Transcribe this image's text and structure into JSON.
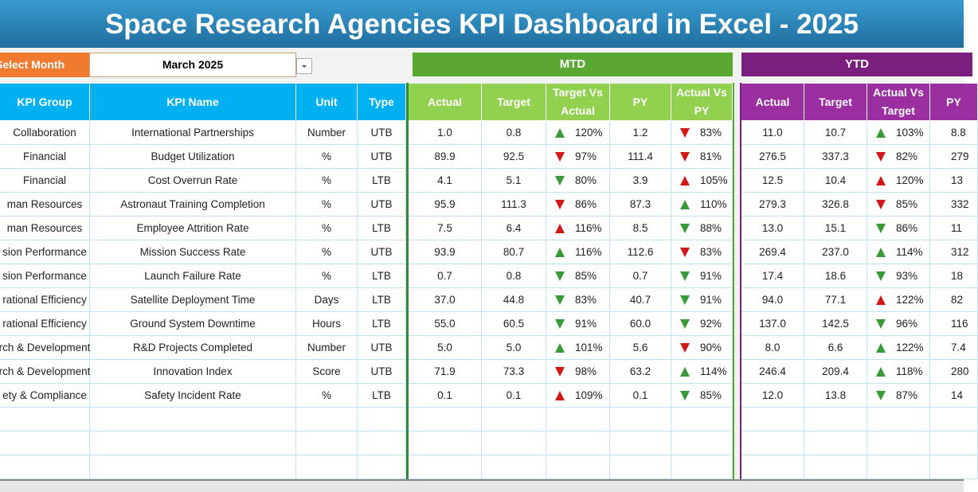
{
  "header": {
    "title": "Space Research Agencies KPI Dashboard in Excel - 2025",
    "select_label": "Select Month",
    "month": "March 2025",
    "mtd": "MTD",
    "ytd": "YTD"
  },
  "table": {
    "columns": [
      "KPI Group",
      "KPI Name",
      "Unit",
      "Type",
      "Actual",
      "Target",
      "Target Vs Actual",
      "PY",
      "Actual Vs PY",
      "Actual",
      "Target",
      "Actual Vs Target",
      "PY"
    ],
    "rows": [
      [
        "Collaboration",
        "International Partnerships",
        "Number",
        "UTB",
        "1.0",
        "0.8",
        "120%",
        "1.2",
        "83%",
        "11.0",
        "10.7",
        "103%",
        "8.8"
      ],
      [
        "Financial",
        "Budget Utilization",
        "%",
        "UTB",
        "89.9",
        "92.5",
        "97%",
        "111.4",
        "81%",
        "276.5",
        "337.3",
        "82%",
        "279"
      ],
      [
        "Financial",
        "Cost Overrun Rate",
        "%",
        "LTB",
        "4.1",
        "5.1",
        "80%",
        "3.9",
        "105%",
        "12.5",
        "10.4",
        "120%",
        "13"
      ],
      [
        "man Resources",
        "Astronaut Training Completion",
        "%",
        "UTB",
        "95.9",
        "111.3",
        "86%",
        "87.3",
        "110%",
        "279.3",
        "326.8",
        "85%",
        "332"
      ],
      [
        "man Resources",
        "Employee Attrition Rate",
        "%",
        "LTB",
        "7.5",
        "6.4",
        "116%",
        "8.5",
        "88%",
        "13.0",
        "15.1",
        "86%",
        "11"
      ],
      [
        "sion Performance",
        "Mission Success Rate",
        "%",
        "UTB",
        "93.9",
        "80.7",
        "116%",
        "112.6",
        "83%",
        "269.4",
        "237.0",
        "114%",
        "312"
      ],
      [
        "sion Performance",
        "Launch Failure Rate",
        "%",
        "LTB",
        "0.7",
        "0.8",
        "85%",
        "0.7",
        "91%",
        "17.4",
        "18.6",
        "93%",
        "18"
      ],
      [
        "rational Efficiency",
        "Satellite Deployment Time",
        "Days",
        "LTB",
        "37.0",
        "44.8",
        "83%",
        "40.7",
        "91%",
        "94.0",
        "77.1",
        "122%",
        "82"
      ],
      [
        "rational Efficiency",
        "Ground System Downtime",
        "Hours",
        "LTB",
        "55.0",
        "60.5",
        "91%",
        "60.0",
        "92%",
        "137.0",
        "142.5",
        "96%",
        "116"
      ],
      [
        "rch & Development",
        "R&D Projects Completed",
        "Number",
        "UTB",
        "5.0",
        "5.0",
        "101%",
        "5.6",
        "90%",
        "8.0",
        "6.6",
        "122%",
        "7.4"
      ],
      [
        "rch & Development",
        "Innovation Index",
        "Score",
        "UTB",
        "71.9",
        "73.3",
        "98%",
        "63.2",
        "114%",
        "246.4",
        "209.4",
        "118%",
        "280"
      ],
      [
        "ety & Compliance",
        "Safety Incident Rate",
        "%",
        "LTB",
        "0.1",
        "0.1",
        "109%",
        "0.1",
        "85%",
        "12.0",
        "13.8",
        "87%",
        "14"
      ]
    ]
  }
}
